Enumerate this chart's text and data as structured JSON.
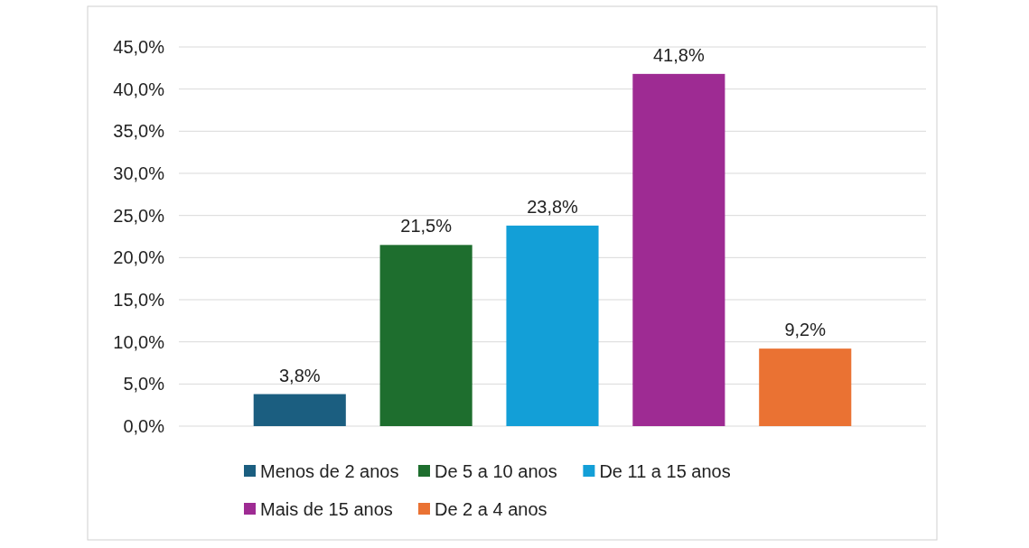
{
  "chart_data": {
    "type": "bar",
    "categories": [
      null
    ],
    "series": [
      {
        "name": "Menos de 2 anos",
        "color": "#1b5e80",
        "values": [
          3.8
        ],
        "value_labels": [
          "3,8%"
        ]
      },
      {
        "name": "De 5 a 10 anos",
        "color": "#1e6e2e",
        "values": [
          21.5
        ],
        "value_labels": [
          "21,5%"
        ]
      },
      {
        "name": "De 11 a 15 anos",
        "color": "#139fd7",
        "values": [
          23.8
        ],
        "value_labels": [
          "23,8%"
        ]
      },
      {
        "name": "Mais de 15 anos",
        "color": "#9e2b93",
        "values": [
          41.8
        ],
        "value_labels": [
          "41,8%"
        ]
      },
      {
        "name": "De 2 a 4 anos",
        "color": "#ea7233",
        "values": [
          9.2
        ],
        "value_labels": [
          "9,2%"
        ]
      }
    ],
    "ylim": [
      0,
      45
    ],
    "yticks": [
      {
        "value": 0,
        "label": "0,0%"
      },
      {
        "value": 5,
        "label": "5,0%"
      },
      {
        "value": 10,
        "label": "10,0%"
      },
      {
        "value": 15,
        "label": "15,0%"
      },
      {
        "value": 20,
        "label": "20,0%"
      },
      {
        "value": 25,
        "label": "25,0%"
      },
      {
        "value": 30,
        "label": "30,0%"
      },
      {
        "value": 35,
        "label": "35,0%"
      },
      {
        "value": 40,
        "label": "40,0%"
      },
      {
        "value": 45,
        "label": "45,0%"
      }
    ],
    "grid": "y",
    "legend": "bottom"
  }
}
